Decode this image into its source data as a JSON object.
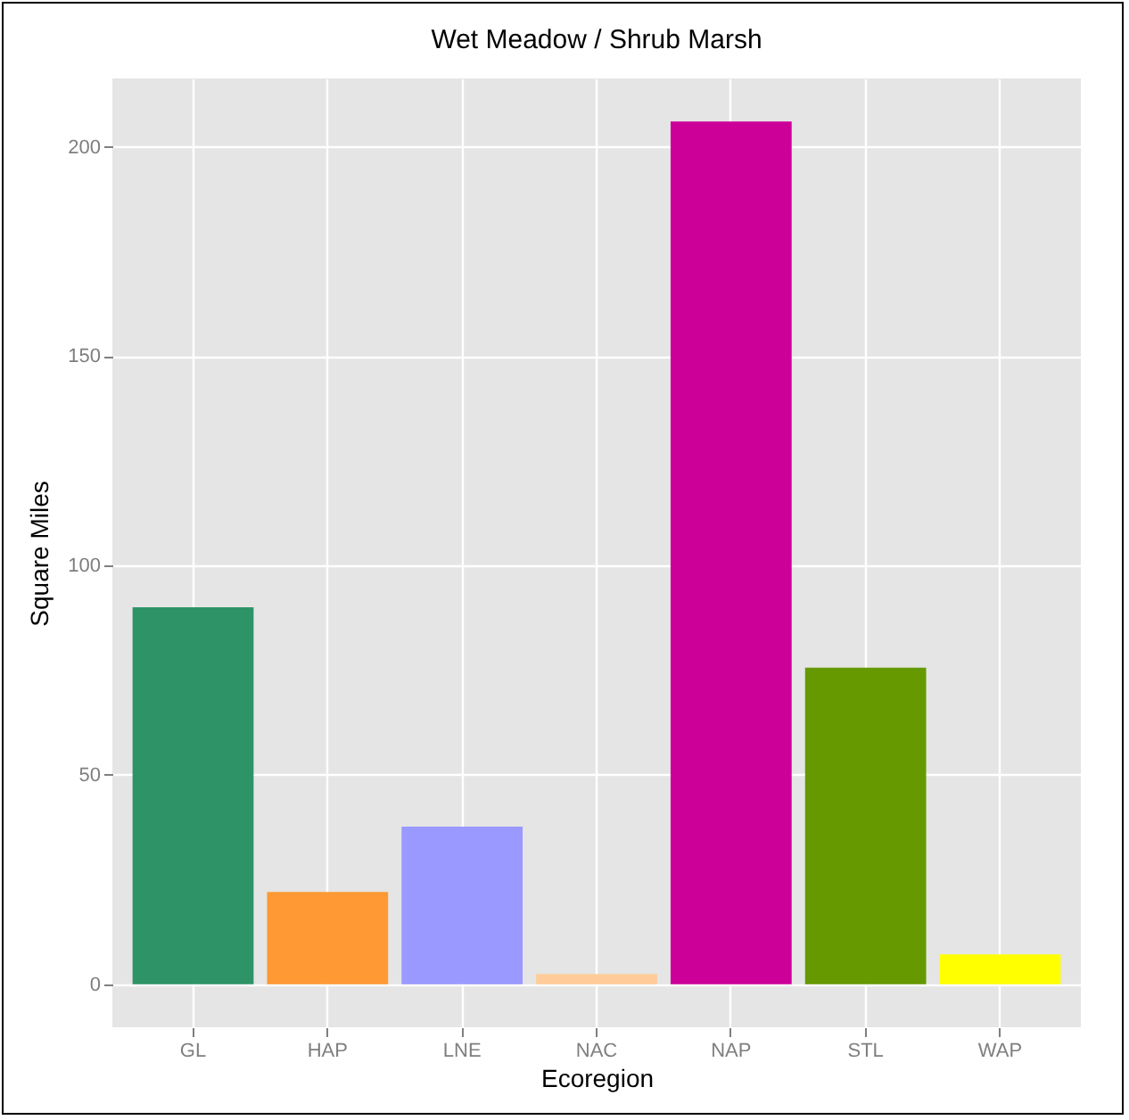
{
  "chart_data": {
    "type": "bar",
    "title": "Wet Meadow / Shrub Marsh",
    "xlabel": "Ecoregion",
    "ylabel": "Square Miles",
    "categories": [
      "GL",
      "HAP",
      "LNE",
      "NAC",
      "NAP",
      "STL",
      "WAP"
    ],
    "values": [
      90,
      22,
      37.6,
      2.4,
      206,
      75.6,
      7.1
    ],
    "colors": [
      "#2e9467",
      "#ff9933",
      "#9999ff",
      "#ffcc99",
      "#cc0099",
      "#669900",
      "#ffff00"
    ],
    "ylim": [
      -10.3,
      216.3
    ],
    "yticks": [
      0,
      50,
      100,
      150,
      200
    ],
    "grid": true
  }
}
